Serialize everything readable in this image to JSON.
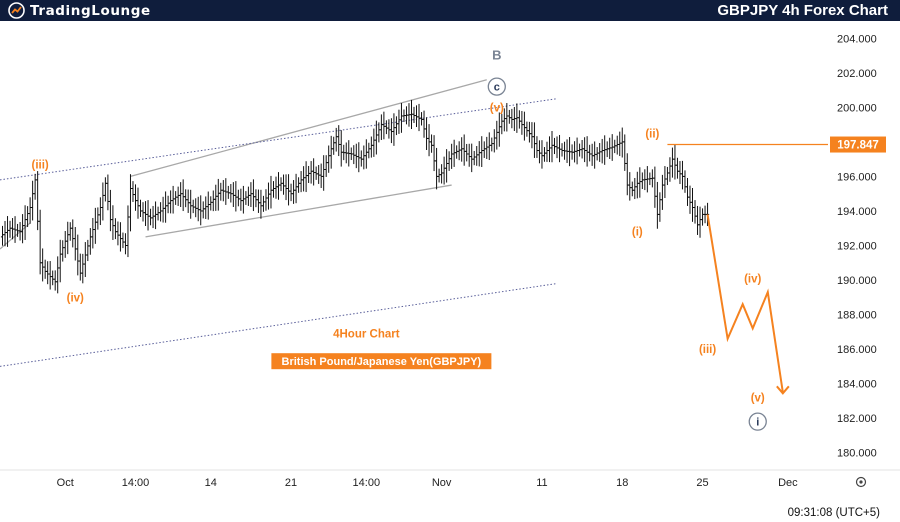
{
  "header": {
    "logo_text": "TradingLounge",
    "chart_title": "GBPJPY 4h Forex Chart"
  },
  "colors": {
    "header_bg": "#0f1d3c",
    "wave_orange": "#f5821f",
    "wave_gray": "#7a8494",
    "channel_line": "#a8a8a8",
    "dotted_line": "#5a5f9a",
    "candles": "#111111"
  },
  "chart_data": {
    "type": "line",
    "instrument": "GBPJPY",
    "timeframe": "4h",
    "ylim": [
      179,
      205
    ],
    "y_ticks": [
      "204.000",
      "202.000",
      "200.000",
      "198.000",
      "196.000",
      "194.000",
      "192.000",
      "190.000",
      "188.000",
      "186.000",
      "184.000",
      "182.000",
      "180.000"
    ],
    "x_ticks": [
      {
        "label": "Oct",
        "i": 13
      },
      {
        "label": "14:00",
        "i": 27
      },
      {
        "label": "14",
        "i": 42
      },
      {
        "label": "21",
        "i": 58
      },
      {
        "label": "14:00",
        "i": 73
      },
      {
        "label": "Nov",
        "i": 88
      },
      {
        "label": "11",
        "i": 108
      },
      {
        "label": "18",
        "i": 124
      },
      {
        "label": "25",
        "i": 140
      },
      {
        "label": "Dec",
        "i": 157
      }
    ],
    "x_range": [
      0,
      165
    ],
    "price_series": [
      {
        "name": "close",
        "points": [
          [
            0,
            192.5
          ],
          [
            2,
            193.0
          ],
          [
            4,
            192.8
          ],
          [
            6,
            194.2
          ],
          [
            7,
            195.8
          ],
          [
            8,
            191.0
          ],
          [
            9,
            190.5
          ],
          [
            11,
            189.9
          ],
          [
            12,
            191.5
          ],
          [
            14,
            193.0
          ],
          [
            15,
            191.8
          ],
          [
            16,
            190.4
          ],
          [
            18,
            192.5
          ],
          [
            20,
            194.2
          ],
          [
            21,
            195.6
          ],
          [
            22,
            193.5
          ],
          [
            23,
            192.8
          ],
          [
            25,
            192.0
          ],
          [
            26,
            195.3
          ],
          [
            27,
            194.6
          ],
          [
            28,
            194.0
          ],
          [
            30,
            193.6
          ],
          [
            32,
            194.0
          ],
          [
            34,
            194.6
          ],
          [
            36,
            195.0
          ],
          [
            38,
            194.3
          ],
          [
            40,
            194.0
          ],
          [
            42,
            194.5
          ],
          [
            44,
            195.2
          ],
          [
            46,
            195.0
          ],
          [
            48,
            194.6
          ],
          [
            50,
            195.0
          ],
          [
            52,
            194.3
          ],
          [
            54,
            195.2
          ],
          [
            56,
            195.6
          ],
          [
            58,
            195.0
          ],
          [
            60,
            195.8
          ],
          [
            62,
            196.3
          ],
          [
            64,
            196.0
          ],
          [
            66,
            197.6
          ],
          [
            67,
            198.3
          ],
          [
            68,
            197.4
          ],
          [
            70,
            197.3
          ],
          [
            72,
            197.0
          ],
          [
            74,
            197.8
          ],
          [
            76,
            199.0
          ],
          [
            78,
            198.6
          ],
          [
            80,
            199.5
          ],
          [
            82,
            199.6
          ],
          [
            84,
            199.3
          ],
          [
            85,
            198.2
          ],
          [
            86,
            197.8
          ],
          [
            87,
            196.0
          ],
          [
            88,
            196.2
          ],
          [
            90,
            197.3
          ],
          [
            92,
            197.6
          ],
          [
            94,
            197.0
          ],
          [
            96,
            197.5
          ],
          [
            98,
            197.9
          ],
          [
            100,
            199.2
          ],
          [
            101,
            199.5
          ],
          [
            102,
            199.3
          ],
          [
            103,
            199.4
          ],
          [
            104,
            199.0
          ],
          [
            106,
            198.3
          ],
          [
            107,
            197.5
          ],
          [
            108,
            197.2
          ],
          [
            110,
            197.8
          ],
          [
            112,
            197.5
          ],
          [
            114,
            197.4
          ],
          [
            116,
            197.6
          ],
          [
            118,
            197.2
          ],
          [
            120,
            197.5
          ],
          [
            122,
            197.7
          ],
          [
            124,
            198.0
          ],
          [
            125,
            195.5
          ],
          [
            126,
            195.2
          ],
          [
            127,
            195.6
          ],
          [
            128,
            195.8
          ],
          [
            130,
            195.9
          ],
          [
            131,
            193.8
          ],
          [
            132,
            195.5
          ],
          [
            133,
            196.2
          ],
          [
            134,
            197.0
          ],
          [
            135,
            196.3
          ],
          [
            136,
            196.0
          ],
          [
            137,
            194.8
          ],
          [
            138,
            194.2
          ],
          [
            139,
            193.2
          ],
          [
            140,
            193.8
          ],
          [
            141,
            193.8
          ]
        ]
      }
    ],
    "projection": {
      "points": [
        [
          141,
          193.8
        ],
        [
          145,
          186.6
        ],
        [
          148,
          188.6
        ],
        [
          150,
          187.2
        ],
        [
          153,
          189.3
        ],
        [
          156,
          183.5
        ]
      ]
    },
    "channels": [
      {
        "style": "solid",
        "from": [
          26,
          196.0
        ],
        "to": [
          97,
          201.6
        ]
      },
      {
        "style": "solid",
        "from": [
          29,
          192.5
        ],
        "to": [
          90,
          195.5
        ]
      },
      {
        "style": "dotted",
        "from": [
          0,
          195.8
        ],
        "to": [
          111,
          200.5
        ]
      },
      {
        "style": "dotted",
        "from": [
          0,
          185.0
        ],
        "to": [
          111,
          189.8
        ]
      },
      {
        "style": "solid",
        "from": [
          0,
          191.8
        ],
        "to": [
          6,
          193.3
        ]
      }
    ],
    "resistance": {
      "value": 197.847,
      "label": "197.847",
      "from_i": 133
    },
    "wave_labels": [
      {
        "text": "(iii)",
        "i": 8,
        "y": 196.7,
        "color": "orange"
      },
      {
        "text": "(iv)",
        "i": 15,
        "y": 189.0,
        "color": "orange"
      },
      {
        "text": "(v)",
        "i": 99,
        "y": 200.0,
        "color": "orange"
      },
      {
        "text": "(ii)",
        "i": 130,
        "y": 198.5,
        "color": "orange"
      },
      {
        "text": "(i)",
        "i": 127,
        "y": 192.8,
        "color": "orange"
      },
      {
        "text": "(iii)",
        "i": 141,
        "y": 186.0,
        "color": "orange"
      },
      {
        "text": "(iv)",
        "i": 150,
        "y": 190.1,
        "color": "orange"
      },
      {
        "text": "(v)",
        "i": 151,
        "y": 183.2,
        "color": "orange"
      },
      {
        "text": "B",
        "i": 99,
        "y": 203.0,
        "color": "gray"
      }
    ],
    "circled_labels": [
      {
        "text": "c",
        "i": 99,
        "y": 201.2,
        "color": "gray"
      },
      {
        "text": "i",
        "i": 151,
        "y": 181.8,
        "color": "gray"
      }
    ],
    "annotations": [
      {
        "text": "4Hour Chart",
        "i": 73,
        "y": 186.9
      },
      {
        "text": "British Pound/Japanese Yen(GBPJPY)",
        "i": 76,
        "y": 185.3
      }
    ],
    "time_display": "09:31:08 (UTC+5)"
  }
}
